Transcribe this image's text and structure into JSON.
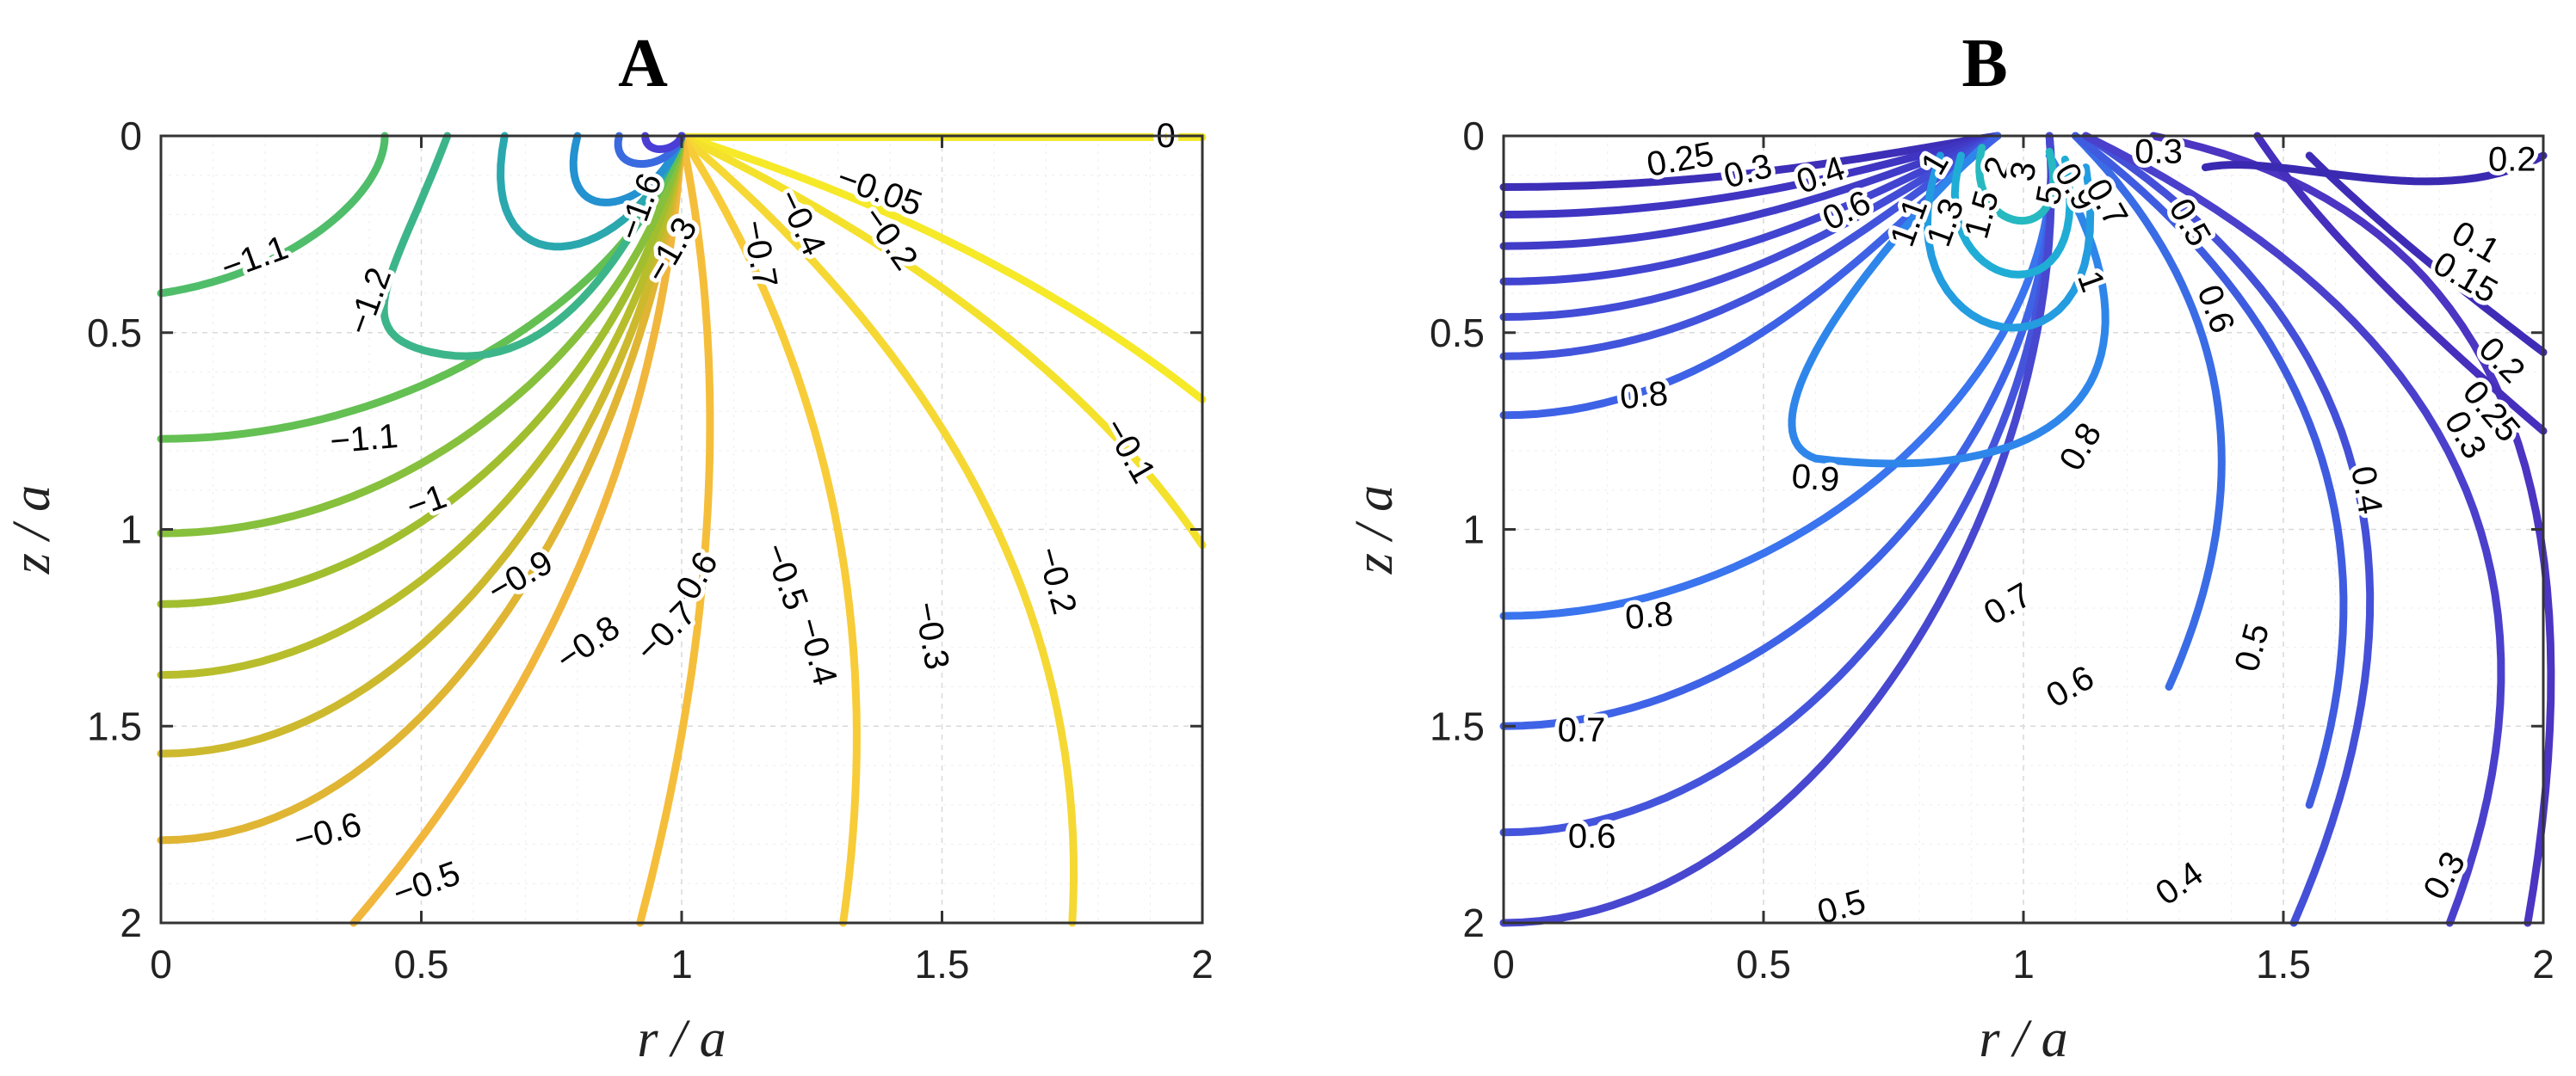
{
  "chart_data": [
    {
      "type": "contour",
      "title": "A",
      "xlabel": "r / a",
      "ylabel": "z / a",
      "xlim": [
        0,
        2
      ],
      "ylim": [
        0,
        2
      ],
      "y_reversed": true,
      "x_ticks": [
        "0",
        "0.5",
        "1",
        "1.5",
        "2"
      ],
      "y_ticks": [
        "0",
        "0.5",
        "1",
        "1.5",
        "2"
      ],
      "grid": "dotted",
      "colormap": "parula",
      "contour_labels": [
        "0",
        "-0.05",
        "-0.1",
        "-0.2",
        "-0.2",
        "-0.3",
        "-0.4",
        "-0.4",
        "-0.5",
        "-0.5",
        "-0.6",
        "-0.6",
        "-0.7",
        "-0.7",
        "-0.8",
        "-0.9",
        "-1",
        "-1.1",
        "-1.1",
        "-1.2",
        "-1.3",
        "-1.6"
      ]
    },
    {
      "type": "contour",
      "title": "B",
      "xlabel": "r / a",
      "ylabel": "z / a",
      "xlim": [
        0,
        2
      ],
      "ylim": [
        0,
        2
      ],
      "y_reversed": true,
      "x_ticks": [
        "0",
        "0.5",
        "1",
        "1.5",
        "2"
      ],
      "y_ticks": [
        "0",
        "0.5",
        "1",
        "1.5",
        "2"
      ],
      "grid": "dotted",
      "colormap": "parula",
      "contour_labels": [
        "0.25",
        "0.3",
        "0.4",
        "0.6",
        "1",
        "2",
        "3",
        "5",
        "1.5",
        "1.1",
        "1.3",
        "0.9",
        "0.7",
        "0.5",
        "0.6",
        "1",
        "0.3",
        "0.2",
        "0.1",
        "0.15",
        "0.2",
        "0.25",
        "0.3",
        "0.4",
        "0.5",
        "0.6",
        "0.7",
        "0.8",
        "0.8",
        "0.8",
        "0.9",
        "0.7",
        "0.6",
        "0.5",
        "0.4",
        "0.3"
      ]
    }
  ]
}
